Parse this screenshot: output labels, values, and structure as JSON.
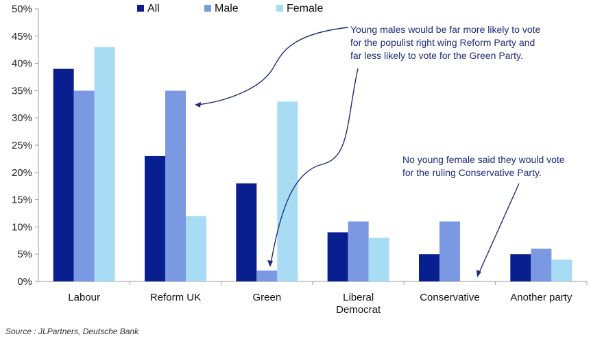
{
  "chart_data": {
    "type": "bar",
    "categories": [
      "Labour",
      "Reform UK",
      "Green",
      "Liberal Democrat",
      "Conservative",
      "Another party"
    ],
    "category_lines": [
      [
        "Labour"
      ],
      [
        "Reform UK"
      ],
      [
        "Green"
      ],
      [
        "Liberal",
        "Democrat"
      ],
      [
        "Conservative"
      ],
      [
        "Another party"
      ]
    ],
    "series": [
      {
        "name": "All",
        "color": "#0a1f8f",
        "values": [
          39,
          23,
          18,
          9,
          5,
          5
        ]
      },
      {
        "name": "Male",
        "color": "#7b98e3",
        "values": [
          35,
          35,
          2,
          11,
          11,
          6
        ]
      },
      {
        "name": "Female",
        "color": "#a8dcf5",
        "values": [
          43,
          12,
          33,
          8,
          0,
          4
        ]
      }
    ],
    "yticks": [
      "0%",
      "5%",
      "10%",
      "15%",
      "20%",
      "25%",
      "30%",
      "35%",
      "40%",
      "45%",
      "50%"
    ],
    "ylim": [
      0,
      50
    ],
    "grid": false,
    "legend_position": "top",
    "annotations": [
      "Young males would be far more likely to vote\nfor the populist right wing Reform Party and\nfar less likely to vote for the Green Party.",
      "No young female said they would vote\nfor the ruling Conservative Party."
    ]
  },
  "source": "Source : JLPartners, Deutsche Bank",
  "colors": {
    "arrow": "#1e2a7a",
    "axis": "#999999"
  }
}
